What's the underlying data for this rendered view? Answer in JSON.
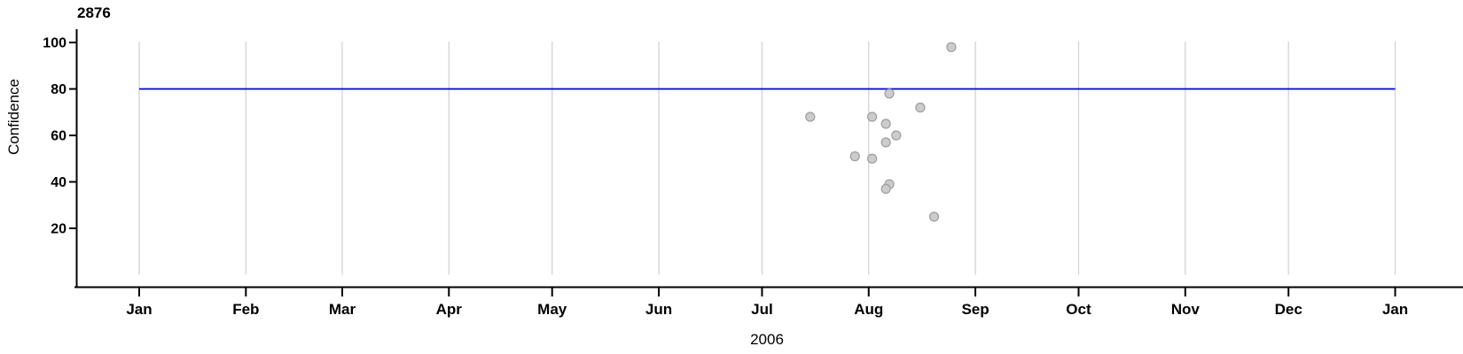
{
  "figure": {
    "title": "2876",
    "ylabel": "Confidence",
    "xlabel": "2006"
  },
  "chart_data": {
    "type": "scatter",
    "title": "2876",
    "xlabel": "2006",
    "ylabel": "Confidence",
    "x_axis": {
      "kind": "date",
      "start": "2006-01-01",
      "end": "2007-01-01",
      "tick_labels": [
        "Jan",
        "Feb",
        "Mar",
        "Apr",
        "May",
        "Jun",
        "Jul",
        "Aug",
        "Sep",
        "Oct",
        "Nov",
        "Dec",
        "Jan"
      ],
      "tick_days": [
        0,
        31,
        59,
        90,
        120,
        151,
        181,
        212,
        243,
        273,
        304,
        334,
        365
      ]
    },
    "y_axis": {
      "ticks": [
        20,
        40,
        60,
        80,
        100
      ],
      "panel_range": [
        0,
        100
      ]
    },
    "grid": "vertical-month-lines",
    "reference_line": {
      "y": 80
    },
    "points": [
      {
        "date": "2006-07-15",
        "day": 195,
        "confidence": 68
      },
      {
        "date": "2006-07-28",
        "day": 208,
        "confidence": 51
      },
      {
        "date": "2006-08-02",
        "day": 213,
        "confidence": 68
      },
      {
        "date": "2006-08-02",
        "day": 213,
        "confidence": 50
      },
      {
        "date": "2006-08-06",
        "day": 217,
        "confidence": 65
      },
      {
        "date": "2006-08-06",
        "day": 217,
        "confidence": 57
      },
      {
        "date": "2006-08-07",
        "day": 218,
        "confidence": 39
      },
      {
        "date": "2006-08-06",
        "day": 217,
        "confidence": 37
      },
      {
        "date": "2006-08-07",
        "day": 218,
        "confidence": 78
      },
      {
        "date": "2006-08-09",
        "day": 220,
        "confidence": 60
      },
      {
        "date": "2006-08-16",
        "day": 227,
        "confidence": 72
      },
      {
        "date": "2006-08-20",
        "day": 231,
        "confidence": 25
      },
      {
        "date": "2006-08-25",
        "day": 236,
        "confidence": 98
      }
    ],
    "style": {
      "background": "#ffffff",
      "axis_color": "#000000",
      "grid_color": "#d3d3d3",
      "ref_line_color": "#0000cd",
      "point_fill": "#cccccc",
      "point_stroke": "#9e9e9e",
      "point_radius": 5,
      "tick_label_color": "#000000"
    }
  }
}
